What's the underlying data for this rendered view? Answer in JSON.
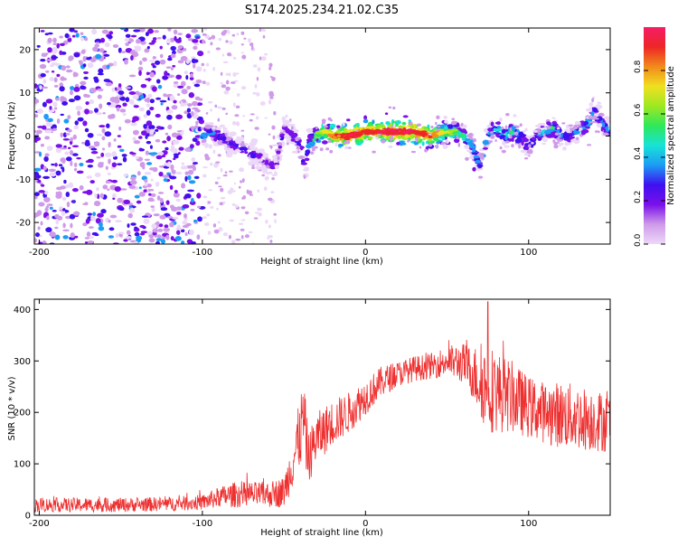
{
  "title": "S174.2025.234.21.02.C35",
  "chart_data": [
    {
      "type": "heatmap",
      "title": "S174.2025.234.21.02.C35",
      "xlabel": "Height of straight line (km)",
      "ylabel": "Frequency (Hz)",
      "xlim": [
        -203,
        150
      ],
      "ylim": [
        -25,
        25
      ],
      "x_ticks": [
        -200,
        -100,
        0,
        100
      ],
      "x_tick_labels": [
        "-200",
        "-100",
        "0",
        "100"
      ],
      "y_ticks": [
        -20,
        -10,
        0,
        10,
        20
      ],
      "y_tick_labels": [
        "-20",
        "-10",
        "0",
        "10",
        "20"
      ],
      "colorbar": {
        "label": "Normalized spectral amplitude",
        "range": [
          0,
          1
        ],
        "ticks": [
          0.0,
          0.2,
          0.4,
          0.6,
          0.8
        ],
        "tick_labels": [
          "0.0",
          "0.2",
          "0.4",
          "0.6",
          "0.8"
        ],
        "colors": [
          "#ecd8f8",
          "#cf9be9",
          "#7a10ea",
          "#3f10f0",
          "#1c9cf5",
          "#18e3d6",
          "#2ee85a",
          "#9ee822",
          "#f0e020",
          "#f28a1c",
          "#ee2626",
          "#f51d67"
        ]
      },
      "noise_region_km": [
        -203,
        -100
      ],
      "faint_region_km": [
        -100,
        -55
      ],
      "ridge": {
        "x": [
          -100,
          -95,
          -90,
          -85,
          -80,
          -75,
          -70,
          -65,
          -60,
          -55,
          -50,
          -45,
          -40,
          -37,
          -35,
          -30,
          -25,
          -20,
          -10,
          0,
          10,
          20,
          30,
          40,
          50,
          55,
          60,
          65,
          70,
          75,
          80,
          85,
          90,
          95,
          100,
          105,
          110,
          115,
          120,
          125,
          130,
          135,
          140,
          145,
          150
        ],
        "y": [
          0,
          1,
          0,
          -1,
          -2,
          -3,
          -4,
          -5,
          -6,
          -7,
          2,
          0,
          -2,
          -8,
          -2,
          0,
          1,
          0,
          0,
          1,
          1,
          1,
          1,
          0,
          1,
          1,
          0,
          -2,
          -7,
          0,
          2,
          0,
          1,
          0,
          -3,
          0,
          1,
          2,
          0,
          0,
          1,
          2,
          6,
          3,
          1
        ],
        "amp": [
          0.45,
          0.4,
          0.4,
          0.35,
          0.35,
          0.35,
          0.35,
          0.3,
          0.35,
          0.3,
          0.35,
          0.35,
          0.4,
          0.4,
          0.5,
          0.6,
          0.75,
          0.85,
          0.95,
          0.9,
          0.95,
          0.97,
          0.95,
          0.85,
          0.7,
          0.6,
          0.5,
          0.4,
          0.35,
          0.45,
          0.55,
          0.5,
          0.55,
          0.5,
          0.4,
          0.45,
          0.5,
          0.55,
          0.45,
          0.4,
          0.45,
          0.5,
          0.45,
          0.45,
          0.45
        ]
      }
    },
    {
      "type": "line",
      "xlabel": "Height of straight line (km)",
      "ylabel": "SNR (10 * v/v)",
      "xlim": [
        -203,
        150
      ],
      "ylim": [
        0,
        420
      ],
      "x_ticks": [
        -200,
        -100,
        0,
        100
      ],
      "x_tick_labels": [
        "-200",
        "-100",
        "0",
        "100"
      ],
      "y_ticks": [
        0,
        100,
        200,
        300,
        400
      ],
      "y_tick_labels": [
        "0",
        "100",
        "200",
        "300",
        "400"
      ],
      "series": [
        {
          "name": "SNR",
          "color": "#ee3030",
          "x": [
            -203,
            -150,
            -120,
            -100,
            -90,
            -80,
            -70,
            -60,
            -50,
            -45,
            -40,
            -38,
            -35,
            -30,
            -20,
            -10,
            0,
            10,
            20,
            30,
            40,
            50,
            60,
            65,
            70,
            75,
            80,
            90,
            100,
            110,
            120,
            130,
            140,
            150
          ],
          "mean": [
            20,
            20,
            22,
            25,
            35,
            40,
            40,
            40,
            45,
            100,
            160,
            190,
            110,
            150,
            180,
            200,
            230,
            260,
            275,
            285,
            290,
            300,
            295,
            280,
            260,
            250,
            240,
            230,
            210,
            200,
            195,
            190,
            185,
            180
          ],
          "spread": [
            14,
            14,
            14,
            15,
            20,
            25,
            25,
            25,
            30,
            50,
            70,
            80,
            50,
            50,
            45,
            40,
            35,
            30,
            25,
            25,
            25,
            30,
            40,
            50,
            70,
            90,
            80,
            70,
            60,
            60,
            65,
            65,
            60,
            60
          ],
          "peak": {
            "x": 75,
            "y": 415
          }
        }
      ]
    }
  ]
}
